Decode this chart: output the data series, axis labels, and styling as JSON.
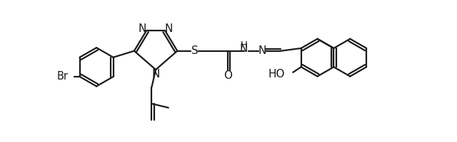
{
  "bg_color": "#ffffff",
  "line_color": "#1a1a1a",
  "lw": 1.6,
  "fs": 10.5,
  "fig_w": 6.4,
  "fig_h": 2.0,
  "dpi": 100,
  "xlim": [
    0,
    13.5
  ],
  "ylim": [
    -1.5,
    3.8
  ]
}
